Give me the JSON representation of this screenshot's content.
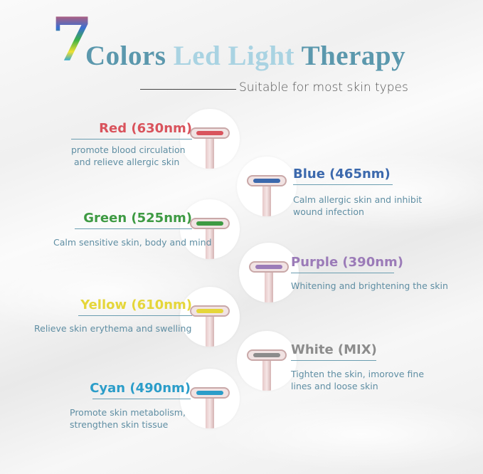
{
  "header": {
    "number": "7",
    "title_parts": [
      "Colors ",
      "Led Light",
      " Therapy"
    ],
    "subtitle": "Suitable for most skin types"
  },
  "items": [
    {
      "title": "Red  (630nm)",
      "desc": [
        "promote blood circulation",
        "and relieve allergic skin"
      ],
      "color": "#d9535c"
    },
    {
      "title": "Blue  (465nm)",
      "desc": [
        "Calm allergic skin and inhibit",
        "wound infection"
      ],
      "color": "#3c69ad"
    },
    {
      "title": "Green (525nm)",
      "desc": [
        "Calm sensitive skin, body and mind"
      ],
      "color": "#3e9a43"
    },
    {
      "title": "Purple (390nm)",
      "desc": [
        "Whitening and brightening the skin"
      ],
      "color": "#9b7bb8"
    },
    {
      "title": "Yellow (610nm)",
      "desc": [
        "Relieve skin erythema and swelling"
      ],
      "color": "#e5d63a"
    },
    {
      "title": "White (MIX)",
      "desc": [
        "Tighten the skin, imorove fine",
        "lines and loose skin"
      ],
      "color": "#8c8c8c"
    },
    {
      "title": "Cyan (490nm)",
      "desc": [
        "Promote skin metabolism,",
        "strengthen skin tissue"
      ],
      "color": "#2b9dc9"
    }
  ]
}
